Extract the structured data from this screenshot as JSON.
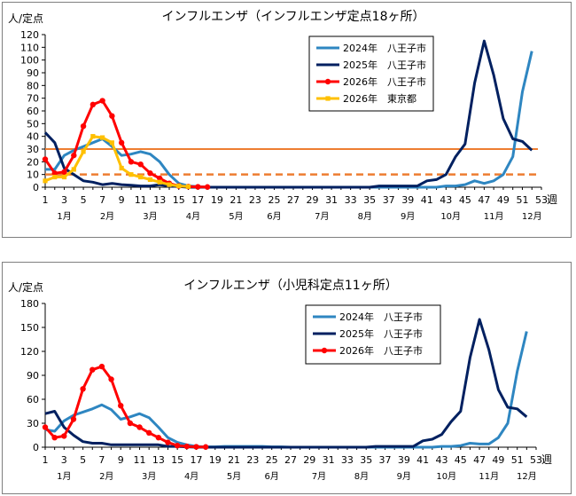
{
  "chart_data": [
    {
      "type": "line",
      "title": "インフルエンザ（インフルエンザ定点18ヶ所）",
      "ylabel": "人/定点",
      "xlabel": "週",
      "ylim": [
        0,
        120
      ],
      "yticks": [
        0,
        10,
        20,
        30,
        40,
        50,
        60,
        70,
        80,
        90,
        100,
        110,
        120
      ],
      "xlim": [
        1,
        53
      ],
      "xticks": [
        1,
        3,
        5,
        7,
        9,
        11,
        13,
        15,
        17,
        19,
        21,
        23,
        25,
        27,
        29,
        31,
        33,
        35,
        37,
        39,
        41,
        43,
        45,
        47,
        49,
        51,
        53
      ],
      "month_labels": [
        {
          "label": "1月",
          "week": 3
        },
        {
          "label": "2月",
          "week": 7.5
        },
        {
          "label": "3月",
          "week": 12
        },
        {
          "label": "4月",
          "week": 16.5
        },
        {
          "label": "5月",
          "week": 21
        },
        {
          "label": "6月",
          "week": 25
        },
        {
          "label": "7月",
          "week": 30
        },
        {
          "label": "8月",
          "week": 34.5
        },
        {
          "label": "9月",
          "week": 39
        },
        {
          "label": "10月",
          "week": 43.5
        },
        {
          "label": "11月",
          "week": 48
        },
        {
          "label": "12月",
          "week": 52
        }
      ],
      "reference_lines": [
        {
          "y": 30,
          "style": "solid",
          "color": "#ed7d31"
        },
        {
          "y": 10,
          "style": "dashed",
          "color": "#ed7d31"
        }
      ],
      "legend_position": "top-right",
      "series": [
        {
          "name": "2024年　八王子市",
          "color": "#2e86c1",
          "marker": "none",
          "x": [
            1,
            2,
            3,
            4,
            5,
            6,
            7,
            8,
            9,
            10,
            11,
            12,
            13,
            14,
            15,
            16,
            17,
            18,
            19,
            20,
            21,
            22,
            23,
            24,
            25,
            26,
            27,
            28,
            29,
            30,
            31,
            32,
            33,
            34,
            35,
            36,
            37,
            38,
            39,
            40,
            41,
            42,
            43,
            44,
            45,
            46,
            47,
            48,
            49,
            50,
            51,
            52
          ],
          "y": [
            14,
            14,
            25,
            29,
            32,
            35,
            38,
            32,
            25,
            26,
            28,
            26,
            20,
            10,
            3,
            1,
            0.5,
            0,
            0,
            0,
            0,
            0,
            0,
            0,
            0,
            0,
            0,
            0,
            0,
            0,
            0,
            0,
            0,
            0,
            0,
            0,
            0,
            0,
            0,
            0,
            0,
            0,
            1,
            1,
            2,
            5,
            3,
            5,
            10,
            24,
            75,
            107
          ]
        },
        {
          "name": "2025年　八王子市",
          "color": "#002060",
          "marker": "none",
          "x": [
            1,
            2,
            3,
            4,
            5,
            6,
            7,
            8,
            9,
            10,
            11,
            12,
            13,
            14,
            15,
            16,
            17,
            18,
            19,
            20,
            21,
            22,
            23,
            24,
            25,
            26,
            27,
            28,
            29,
            30,
            31,
            32,
            33,
            34,
            35,
            36,
            37,
            38,
            39,
            40,
            41,
            42,
            43,
            44,
            45,
            46,
            47,
            48,
            49,
            50,
            51,
            52
          ],
          "y": [
            43,
            35,
            15,
            10,
            5,
            4,
            2,
            3,
            2,
            1.5,
            1,
            1,
            2,
            1,
            0.5,
            0,
            0,
            0,
            0,
            0,
            0,
            0,
            0,
            0,
            0,
            0,
            0,
            0,
            0,
            0,
            0,
            0,
            0,
            0,
            0,
            1,
            1,
            1,
            1,
            1,
            5,
            6,
            10,
            24,
            34,
            82,
            115,
            88,
            54,
            38,
            36,
            29
          ]
        },
        {
          "name": "2026年　八王子市",
          "color": "#ff0000",
          "marker": "circle",
          "x": [
            1,
            2,
            3,
            4,
            5,
            6,
            7,
            8,
            9,
            10,
            11,
            12,
            13,
            14,
            15,
            16,
            17,
            18
          ],
          "y": [
            22,
            11,
            12,
            25,
            48,
            65,
            68,
            56,
            35,
            20,
            18,
            11,
            7,
            3,
            1,
            0.5,
            0.3,
            0.2
          ]
        },
        {
          "name": "2026年　東京都",
          "color": "#ffc000",
          "marker": "square",
          "x": [
            1,
            2,
            3,
            4,
            5,
            6,
            7,
            8,
            9,
            10,
            11,
            12,
            13,
            14,
            15,
            16
          ],
          "y": [
            5,
            8,
            8,
            14,
            28,
            40,
            39,
            35,
            15,
            10,
            8,
            6,
            4,
            2,
            1,
            0.5
          ]
        }
      ]
    },
    {
      "type": "line",
      "title": "インフルエンザ（小児科定点11ヶ所）",
      "ylabel": "人/定点",
      "xlabel": "週",
      "ylim": [
        0,
        180
      ],
      "yticks": [
        0,
        30,
        60,
        90,
        120,
        150,
        180
      ],
      "xlim": [
        1,
        53
      ],
      "xticks": [
        1,
        3,
        5,
        7,
        9,
        11,
        13,
        15,
        17,
        19,
        21,
        23,
        25,
        27,
        29,
        31,
        33,
        35,
        37,
        39,
        41,
        43,
        45,
        47,
        49,
        51,
        53
      ],
      "month_labels": [
        {
          "label": "1月",
          "week": 3
        },
        {
          "label": "2月",
          "week": 7.5
        },
        {
          "label": "3月",
          "week": 12
        },
        {
          "label": "4月",
          "week": 16.5
        },
        {
          "label": "5月",
          "week": 21
        },
        {
          "label": "6月",
          "week": 25
        },
        {
          "label": "7月",
          "week": 30
        },
        {
          "label": "8月",
          "week": 34.5
        },
        {
          "label": "9月",
          "week": 39
        },
        {
          "label": "10月",
          "week": 43.5
        },
        {
          "label": "11月",
          "week": 48
        },
        {
          "label": "12月",
          "week": 52
        }
      ],
      "reference_lines": [],
      "legend_position": "top-right",
      "series": [
        {
          "name": "2024年　八王子市",
          "color": "#2e86c1",
          "marker": "none",
          "x": [
            1,
            2,
            3,
            4,
            5,
            6,
            7,
            8,
            9,
            10,
            11,
            12,
            13,
            14,
            15,
            16,
            17,
            18,
            19,
            20,
            21,
            22,
            23,
            24,
            25,
            26,
            27,
            28,
            29,
            30,
            31,
            32,
            33,
            34,
            35,
            36,
            37,
            38,
            39,
            40,
            41,
            42,
            43,
            44,
            45,
            46,
            47,
            48,
            49,
            50,
            51,
            52
          ],
          "y": [
            22,
            20,
            33,
            40,
            44,
            48,
            53,
            47,
            35,
            38,
            42,
            37,
            25,
            12,
            6,
            3,
            1,
            0.5,
            0.5,
            1,
            1,
            1,
            1,
            1,
            0.5,
            0.5,
            0,
            0,
            0,
            0,
            0,
            0,
            0,
            0,
            0,
            0,
            0,
            0,
            0,
            0,
            0,
            0,
            1,
            1,
            2,
            5,
            4,
            4,
            12,
            30,
            95,
            145
          ]
        },
        {
          "name": "2025年　八王子市",
          "color": "#002060",
          "marker": "none",
          "x": [
            1,
            2,
            3,
            4,
            5,
            6,
            7,
            8,
            9,
            10,
            11,
            12,
            13,
            14,
            15,
            16,
            17,
            18,
            19,
            20,
            21,
            22,
            23,
            24,
            25,
            26,
            27,
            28,
            29,
            30,
            31,
            32,
            33,
            34,
            35,
            36,
            37,
            38,
            39,
            40,
            41,
            42,
            43,
            44,
            45,
            46,
            47,
            48,
            49,
            50,
            51,
            52
          ],
          "y": [
            42,
            45,
            25,
            15,
            7,
            5,
            5,
            3,
            3,
            3,
            3,
            3,
            3,
            1,
            1,
            0.5,
            0,
            0,
            0,
            0,
            0,
            0,
            0,
            0,
            0,
            0,
            0,
            0,
            0,
            0,
            0,
            0,
            0,
            0,
            0,
            1,
            1,
            1,
            1,
            1,
            8,
            10,
            16,
            32,
            45,
            112,
            160,
            122,
            72,
            50,
            48,
            38
          ]
        },
        {
          "name": "2026年　八王子市",
          "color": "#ff0000",
          "marker": "circle",
          "x": [
            1,
            2,
            3,
            4,
            5,
            6,
            7,
            8,
            9,
            10,
            11,
            12,
            13,
            14,
            15,
            16,
            17,
            18
          ],
          "y": [
            25,
            12,
            14,
            35,
            73,
            97,
            101,
            85,
            52,
            30,
            25,
            18,
            12,
            6,
            2,
            1,
            0.5,
            0.3
          ]
        }
      ]
    }
  ]
}
